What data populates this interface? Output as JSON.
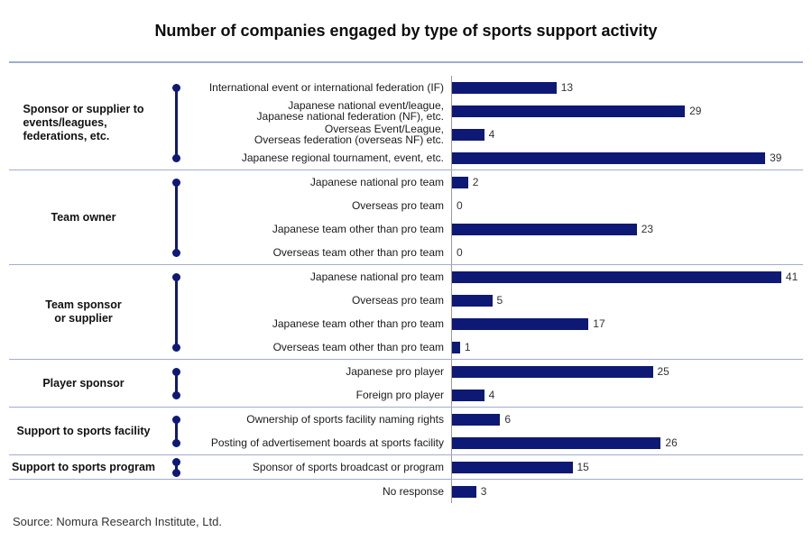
{
  "header": {
    "title": "Number of companies engaged by type of sports support activity"
  },
  "footer": {
    "source": "Source: Nomura Research Institute, Ltd."
  },
  "colors": {
    "bar": "#0e1975",
    "bracket": "#0e1975",
    "separator": "#a3abce",
    "axis": "#9a9a9a"
  },
  "chart_data": {
    "type": "bar",
    "orientation": "horizontal",
    "title": "Number of companies engaged by type of sports support activity",
    "value_axis": {
      "min": 0,
      "max_visible_value": 41,
      "gridlines": false,
      "value_labels_position": "end of bar"
    },
    "legend": "none",
    "groups": [
      {
        "label": "Sponsor or supplier to\nevents/leagues,\nfederations, etc.",
        "items": [
          {
            "label": "International event or international federation (IF)",
            "value": 13
          },
          {
            "label": "Japanese national event/league,\nJapanese national federation (NF), etc.",
            "value": 29
          },
          {
            "label": "Overseas Event/League,\nOverseas federation (overseas NF) etc.",
            "value": 4
          },
          {
            "label": "Japanese regional tournament, event, etc.",
            "value": 39
          }
        ]
      },
      {
        "label": "Team owner",
        "items": [
          {
            "label": "Japanese national pro team",
            "value": 2
          },
          {
            "label": "Overseas pro team",
            "value": 0
          },
          {
            "label": "Japanese team other than pro team",
            "value": 23
          },
          {
            "label": "Overseas team other than pro team",
            "value": 0
          }
        ]
      },
      {
        "label": "Team sponsor\nor supplier",
        "items": [
          {
            "label": "Japanese national pro team",
            "value": 41
          },
          {
            "label": "Overseas pro team",
            "value": 5
          },
          {
            "label": "Japanese team other than pro team",
            "value": 17
          },
          {
            "label": "Overseas team other than pro team",
            "value": 1
          }
        ]
      },
      {
        "label": "Player sponsor",
        "items": [
          {
            "label": "Japanese pro player",
            "value": 25
          },
          {
            "label": "Foreign pro player",
            "value": 4
          }
        ]
      },
      {
        "label": "Support to sports facility",
        "items": [
          {
            "label": "Ownership of sports facility naming rights",
            "value": 6
          },
          {
            "label": "Posting of advertisement boards at sports facility",
            "value": 26
          }
        ]
      },
      {
        "label": "Support to sports program",
        "items": [
          {
            "label": "Sponsor of sports broadcast or program",
            "value": 15
          }
        ]
      },
      {
        "label": "",
        "items": [
          {
            "label": "No response",
            "value": 3
          }
        ]
      }
    ]
  }
}
